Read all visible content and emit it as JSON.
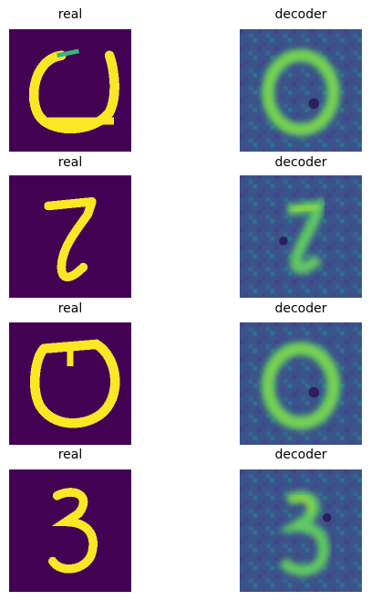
{
  "figure": {
    "rows": [
      {
        "digit": "0",
        "left_title": "real",
        "right_title": "decoder"
      },
      {
        "digit": "2",
        "left_title": "real",
        "right_title": "decoder"
      },
      {
        "digit": "0",
        "left_title": "real",
        "right_title": "decoder"
      },
      {
        "digit": "3",
        "left_title": "real",
        "right_title": "decoder"
      }
    ],
    "colormap": "viridis",
    "colors": {
      "background_real": "#440154",
      "background_decoder": "#3b528b",
      "stroke_peak": "#fde725",
      "stroke_decoder": "#5ec962"
    }
  }
}
